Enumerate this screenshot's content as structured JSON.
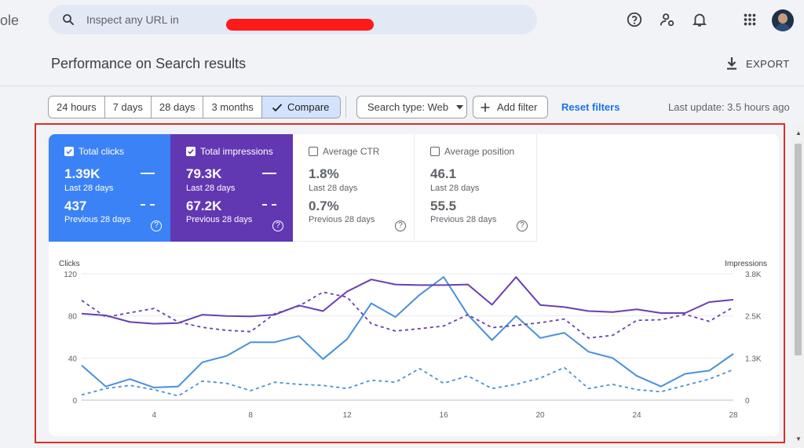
{
  "app": {
    "brand_fragment": "ole"
  },
  "search": {
    "placeholder": "Inspect any URL in"
  },
  "header_icons": [
    "help-icon",
    "admin-icon",
    "bell-icon",
    "apps-grid-icon",
    "avatar"
  ],
  "page": {
    "title": "Performance on Search results",
    "export_label": "EXPORT"
  },
  "filters": {
    "ranges": [
      "24 hours",
      "7 days",
      "28 days",
      "3 months"
    ],
    "compare_label": "Compare",
    "search_type": "Search type: Web",
    "add_filter": "Add filter",
    "reset": "Reset filters",
    "last_update": "Last update: 3.5 hours ago"
  },
  "metrics": [
    {
      "label": "Total clicks",
      "checked": true,
      "current": "1.39K",
      "current_period": "Last 28 days",
      "previous": "437",
      "previous_period": "Previous 28 days",
      "color": "#3b82f6"
    },
    {
      "label": "Total impressions",
      "checked": true,
      "current": "79.3K",
      "current_period": "Last 28 days",
      "previous": "67.2K",
      "previous_period": "Previous 28 days",
      "color": "#6237b2"
    },
    {
      "label": "Average CTR",
      "checked": false,
      "current": "1.8%",
      "current_period": "Last 28 days",
      "previous": "0.7%",
      "previous_period": "Previous 28 days"
    },
    {
      "label": "Average position",
      "checked": false,
      "current": "46.1",
      "current_period": "Last 28 days",
      "previous": "55.5",
      "previous_period": "Previous 28 days"
    }
  ],
  "chart_data": {
    "type": "line",
    "left_axis": {
      "label": "Clicks",
      "ticks": [
        "120",
        "80",
        "40",
        "0"
      ],
      "range": [
        0,
        120
      ]
    },
    "right_axis": {
      "label": "Impressions",
      "ticks": [
        "3.8K",
        "2.5K",
        "1.3K",
        "0"
      ],
      "range": [
        0,
        3800
      ]
    },
    "x_ticks": [
      "4",
      "8",
      "12",
      "16",
      "20",
      "24",
      "28"
    ],
    "x": [
      1,
      2,
      3,
      4,
      5,
      6,
      7,
      8,
      9,
      10,
      11,
      12,
      13,
      14,
      15,
      16,
      17,
      18,
      19,
      20,
      21,
      22,
      23,
      24,
      25,
      26,
      27,
      28
    ],
    "series": [
      {
        "axis": "left",
        "style": "solid",
        "color": "#4a90d9",
        "values": [
          33,
          13,
          20,
          12,
          13,
          36,
          42,
          55,
          55,
          61,
          39,
          58,
          92,
          79,
          100,
          117,
          81,
          57,
          80,
          59,
          64,
          46,
          40,
          23,
          13,
          25,
          28,
          44
        ]
      },
      {
        "axis": "left",
        "style": "dashed",
        "color": "#4a90d9",
        "values": [
          5,
          11,
          14,
          10,
          4,
          18,
          16,
          9,
          17,
          15,
          14,
          11,
          19,
          17,
          30,
          16,
          23,
          11,
          15,
          21,
          31,
          11,
          15,
          10,
          8,
          14,
          20,
          29
        ]
      },
      {
        "axis": "right",
        "style": "solid",
        "color": "#6a3fb0",
        "values": [
          2600,
          2550,
          2350,
          2300,
          2320,
          2570,
          2530,
          2520,
          2570,
          2850,
          2680,
          3270,
          3630,
          3480,
          3460,
          3460,
          3480,
          2870,
          3700,
          2860,
          2800,
          2680,
          2650,
          2730,
          2620,
          2620,
          2950,
          3020
        ]
      },
      {
        "axis": "right",
        "style": "dashed",
        "color": "#6a3fb0",
        "values": [
          3000,
          2500,
          2630,
          2760,
          2350,
          2190,
          2100,
          2060,
          2600,
          2830,
          3250,
          3100,
          2300,
          2080,
          2150,
          2230,
          2570,
          2180,
          2250,
          2330,
          2440,
          1870,
          1950,
          2400,
          2420,
          2580,
          2370,
          2800
        ]
      }
    ]
  }
}
